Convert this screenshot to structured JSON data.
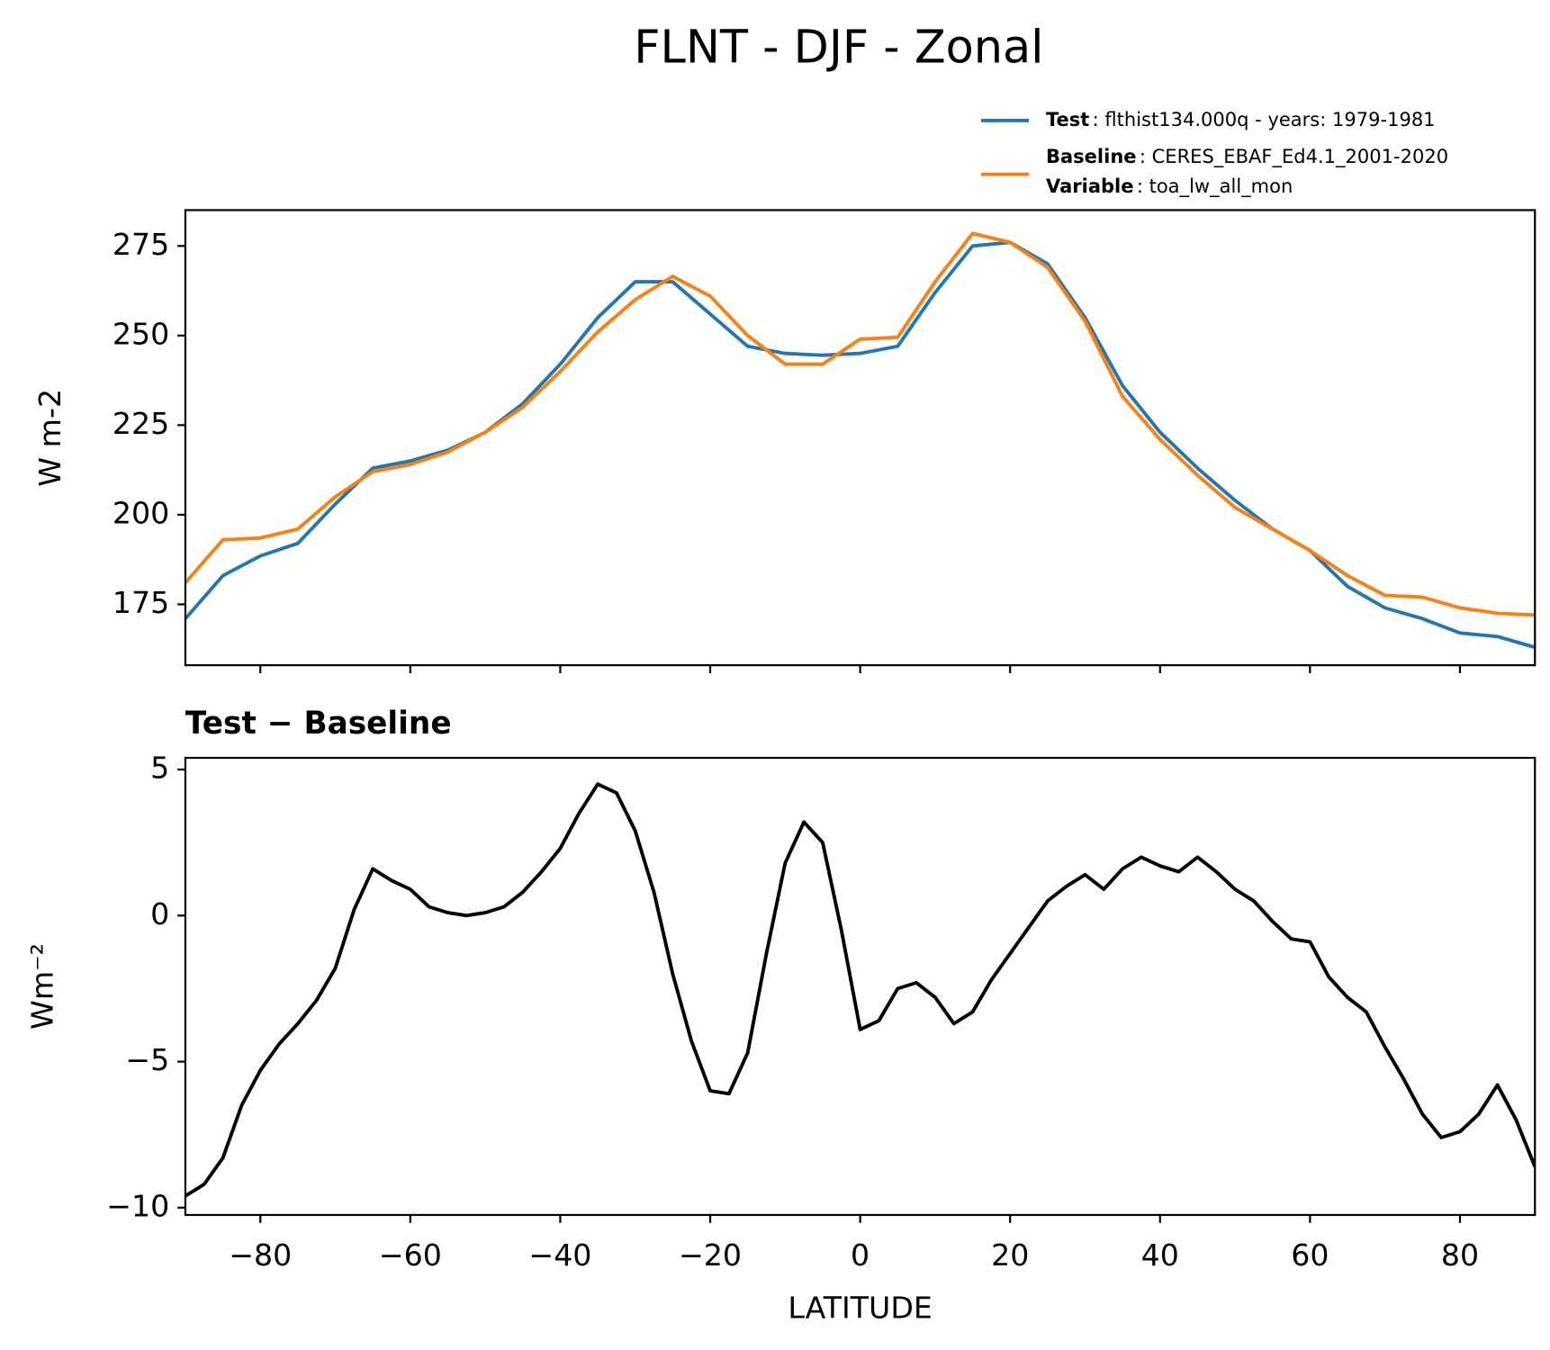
{
  "chart_data": [
    {
      "type": "line",
      "title": "FLNT - DJF - Zonal",
      "ylabel": "W m-2",
      "x": [
        -90,
        -85,
        -80,
        -75,
        -70,
        -65,
        -60,
        -55,
        -50,
        -45,
        -40,
        -35,
        -30,
        -25,
        -20,
        -15,
        -10,
        -5,
        0,
        5,
        10,
        15,
        20,
        25,
        30,
        35,
        40,
        45,
        50,
        55,
        60,
        65,
        70,
        75,
        80,
        85,
        90
      ],
      "series": [
        {
          "name": "Test",
          "label": ": flthist134.000q - years: 1979-1981",
          "color": "#1f77b4",
          "values": [
            171,
            183,
            188.5,
            192,
            203,
            213,
            215,
            218,
            223,
            231,
            242,
            255,
            265,
            265,
            256,
            247,
            245,
            244.5,
            245,
            247,
            262,
            275,
            276,
            270,
            255,
            236,
            223,
            213,
            204,
            196,
            190,
            180,
            174,
            171,
            167,
            166,
            163
          ]
        },
        {
          "name": "Baseline",
          "label": ": CERES_EBAF_Ed4.1_2001-2020",
          "color": "#ff7f0e",
          "values": [
            181,
            193,
            193.5,
            196,
            205,
            212,
            214,
            217.5,
            223,
            230,
            240,
            251,
            260,
            266.5,
            261,
            250,
            242,
            242,
            249,
            249.5,
            265,
            278.5,
            276,
            269,
            254,
            233,
            221,
            211,
            202,
            196,
            190,
            183,
            177.5,
            177,
            174,
            172.5,
            172
          ]
        }
      ],
      "legend_note": {
        "name": "Variable",
        "label": ": toa_lw_all_mon"
      },
      "xlim": [
        -90,
        90
      ],
      "ylim": [
        158,
        285
      ],
      "yticks": [
        175,
        200,
        225,
        250,
        275
      ]
    },
    {
      "type": "line",
      "subtitle": "Test − Baseline",
      "xlabel": "LATITUDE",
      "ylabel": "Wm⁻²",
      "x": [
        -90,
        -87.5,
        -85,
        -82.5,
        -80,
        -77.5,
        -75,
        -72.5,
        -70,
        -67.5,
        -65,
        -62.5,
        -60,
        -57.5,
        -55,
        -52.5,
        -50,
        -47.5,
        -45,
        -42.5,
        -40,
        -37.5,
        -35,
        -32.5,
        -30,
        -27.5,
        -25,
        -22.5,
        -20,
        -17.5,
        -15,
        -12.5,
        -10,
        -7.5,
        -5,
        -2.5,
        0,
        2.5,
        5,
        7.5,
        10,
        12.5,
        15,
        17.5,
        20,
        22.5,
        25,
        27.5,
        30,
        32.5,
        35,
        37.5,
        40,
        42.5,
        45,
        47.5,
        50,
        52.5,
        55,
        57.5,
        60,
        62.5,
        65,
        67.5,
        70,
        72.5,
        75,
        77.5,
        80,
        82.5,
        85,
        87.5,
        90
      ],
      "series": [
        {
          "color": "#000000",
          "values": [
            -9.6,
            -9.2,
            -8.3,
            -6.5,
            -5.3,
            -4.4,
            -3.7,
            -2.9,
            -1.8,
            0.2,
            1.6,
            1.2,
            0.9,
            0.3,
            0.1,
            0.0,
            0.1,
            0.3,
            0.8,
            1.5,
            2.3,
            3.5,
            4.5,
            4.2,
            2.9,
            0.8,
            -2.0,
            -4.3,
            -6.0,
            -6.1,
            -4.7,
            -1.3,
            1.8,
            3.2,
            2.5,
            -0.5,
            -3.9,
            -3.6,
            -2.5,
            -2.3,
            -2.8,
            -3.7,
            -3.3,
            -2.2,
            -1.3,
            -0.4,
            0.5,
            1.0,
            1.4,
            0.9,
            1.6,
            2.0,
            1.7,
            1.5,
            2.0,
            1.5,
            0.9,
            0.5,
            -0.2,
            -0.8,
            -0.9,
            -2.1,
            -2.8,
            -3.3,
            -4.5,
            -5.6,
            -6.8,
            -7.6,
            -7.4,
            -6.8,
            -5.8,
            -7.0,
            -8.6
          ]
        }
      ],
      "xlim": [
        -90,
        90
      ],
      "ylim": [
        -10.25,
        5.4
      ],
      "xticks": [
        {
          "value": -80,
          "label": "−80"
        },
        {
          "value": -60,
          "label": "−60"
        },
        {
          "value": -40,
          "label": "−40"
        },
        {
          "value": -20,
          "label": "−20"
        },
        0,
        20,
        40,
        60,
        80
      ],
      "yticks": [
        5,
        0,
        {
          "value": -5,
          "label": "−5"
        },
        {
          "value": -10,
          "label": "−10"
        }
      ]
    }
  ]
}
